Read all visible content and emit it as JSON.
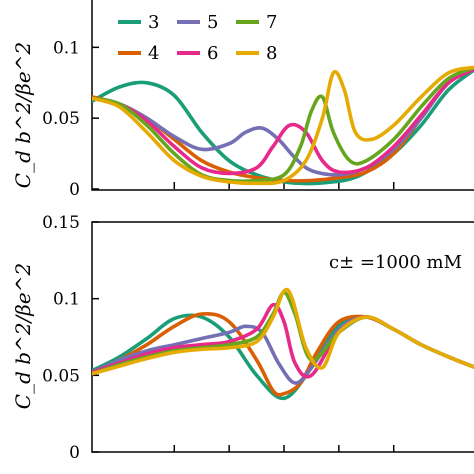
{
  "chart_data": [
    {
      "type": "line",
      "title": "",
      "ylabel": "C_d b^2/βe^2",
      "xlim": [
        -0.35,
        0.35
      ],
      "ylim": [
        0,
        0.12
      ],
      "yticks": [
        0,
        0.05,
        0.1
      ],
      "ytick_labels": [
        "0",
        "0.05",
        "0.1"
      ],
      "legend": {
        "placement": "top-left",
        "columns": 3
      },
      "series": [
        {
          "name": "3",
          "color": "#1a9e77",
          "x": [
            -0.35,
            -0.3,
            -0.25,
            -0.2,
            -0.15,
            -0.1,
            -0.05,
            0,
            0.03,
            0.06,
            0.09,
            0.12,
            0.15,
            0.2,
            0.25,
            0.3,
            0.35
          ],
          "y": [
            0.062,
            0.072,
            0.075,
            0.066,
            0.04,
            0.02,
            0.01,
            0.005,
            0.004,
            0.004,
            0.005,
            0.007,
            0.012,
            0.025,
            0.045,
            0.07,
            0.085
          ]
        },
        {
          "name": "4",
          "color": "#d95f02",
          "x": [
            -0.35,
            -0.3,
            -0.25,
            -0.2,
            -0.15,
            -0.1,
            -0.05,
            0,
            0.05,
            0.1,
            0.15,
            0.2,
            0.25,
            0.3,
            0.35
          ],
          "y": [
            0.065,
            0.06,
            0.05,
            0.035,
            0.02,
            0.012,
            0.008,
            0.006,
            0.006,
            0.008,
            0.012,
            0.025,
            0.05,
            0.075,
            0.085
          ]
        },
        {
          "name": "5",
          "color": "#7570b3",
          "x": [
            -0.35,
            -0.3,
            -0.25,
            -0.2,
            -0.15,
            -0.1,
            -0.07,
            -0.04,
            -0.01,
            0.02,
            0.05,
            0.1,
            0.15,
            0.2,
            0.25,
            0.3,
            0.35
          ],
          "y": [
            0.064,
            0.06,
            0.05,
            0.037,
            0.028,
            0.032,
            0.04,
            0.043,
            0.035,
            0.022,
            0.013,
            0.01,
            0.015,
            0.028,
            0.05,
            0.075,
            0.085
          ]
        },
        {
          "name": "6",
          "color": "#e7298a",
          "x": [
            -0.35,
            -0.3,
            -0.25,
            -0.2,
            -0.15,
            -0.1,
            -0.05,
            -0.02,
            0.01,
            0.04,
            0.07,
            0.1,
            0.15,
            0.2,
            0.25,
            0.3,
            0.35
          ],
          "y": [
            0.064,
            0.06,
            0.048,
            0.03,
            0.015,
            0.011,
            0.015,
            0.03,
            0.045,
            0.04,
            0.02,
            0.012,
            0.015,
            0.03,
            0.052,
            0.075,
            0.085
          ]
        },
        {
          "name": "7",
          "color": "#66a61e",
          "x": [
            -0.35,
            -0.3,
            -0.25,
            -0.2,
            -0.15,
            -0.1,
            -0.05,
            0,
            0.03,
            0.05,
            0.07,
            0.09,
            0.12,
            0.15,
            0.2,
            0.25,
            0.3,
            0.35
          ],
          "y": [
            0.064,
            0.06,
            0.045,
            0.025,
            0.01,
            0.006,
            0.006,
            0.01,
            0.03,
            0.055,
            0.065,
            0.04,
            0.02,
            0.02,
            0.035,
            0.058,
            0.078,
            0.086
          ]
        },
        {
          "name": "8",
          "color": "#e6ab02",
          "x": [
            -0.35,
            -0.3,
            -0.25,
            -0.2,
            -0.15,
            -0.1,
            -0.05,
            0,
            0.04,
            0.07,
            0.09,
            0.11,
            0.13,
            0.16,
            0.2,
            0.25,
            0.3,
            0.35
          ],
          "y": [
            0.064,
            0.058,
            0.04,
            0.02,
            0.009,
            0.005,
            0.004,
            0.006,
            0.02,
            0.05,
            0.082,
            0.07,
            0.04,
            0.035,
            0.045,
            0.065,
            0.082,
            0.086
          ]
        }
      ]
    },
    {
      "type": "line",
      "title": "",
      "ylabel": "C_d b^2/βe^2",
      "annotation": "c± =1000 mM",
      "xlim": [
        -0.35,
        0.35
      ],
      "ylim": [
        0,
        0.15
      ],
      "yticks": [
        0,
        0.05,
        0.1,
        0.15
      ],
      "ytick_labels": [
        "0",
        "0.05",
        "0.1",
        "0.15"
      ],
      "series": [
        {
          "name": "3",
          "color": "#1a9e77",
          "x": [
            -0.35,
            -0.3,
            -0.25,
            -0.2,
            -0.15,
            -0.1,
            -0.05,
            0,
            0.05,
            0.1,
            0.15,
            0.2,
            0.25,
            0.3,
            0.35
          ],
          "y": [
            0.053,
            0.062,
            0.074,
            0.087,
            0.088,
            0.075,
            0.05,
            0.035,
            0.055,
            0.083,
            0.088,
            0.08,
            0.07,
            0.062,
            0.055
          ]
        },
        {
          "name": "4",
          "color": "#d95f02",
          "x": [
            -0.35,
            -0.3,
            -0.25,
            -0.2,
            -0.15,
            -0.1,
            -0.05,
            -0.02,
            0,
            0.03,
            0.06,
            0.1,
            0.15,
            0.2,
            0.25,
            0.3,
            0.35
          ],
          "y": [
            0.052,
            0.06,
            0.07,
            0.082,
            0.09,
            0.085,
            0.06,
            0.04,
            0.038,
            0.045,
            0.065,
            0.085,
            0.088,
            0.08,
            0.07,
            0.062,
            0.055
          ]
        },
        {
          "name": "5",
          "color": "#7570b3",
          "x": [
            -0.35,
            -0.3,
            -0.25,
            -0.2,
            -0.15,
            -0.1,
            -0.07,
            -0.04,
            -0.01,
            0.02,
            0.05,
            0.1,
            0.15,
            0.2,
            0.25,
            0.3,
            0.35
          ],
          "y": [
            0.052,
            0.06,
            0.066,
            0.07,
            0.074,
            0.078,
            0.082,
            0.078,
            0.058,
            0.045,
            0.055,
            0.08,
            0.088,
            0.08,
            0.07,
            0.062,
            0.055
          ]
        },
        {
          "name": "6",
          "color": "#e7298a",
          "x": [
            -0.35,
            -0.3,
            -0.25,
            -0.2,
            -0.15,
            -0.1,
            -0.05,
            -0.02,
            0,
            0.02,
            0.05,
            0.1,
            0.15,
            0.2,
            0.25,
            0.3,
            0.35
          ],
          "y": [
            0.052,
            0.058,
            0.064,
            0.068,
            0.07,
            0.072,
            0.08,
            0.096,
            0.085,
            0.058,
            0.05,
            0.078,
            0.088,
            0.08,
            0.07,
            0.062,
            0.055
          ]
        },
        {
          "name": "7",
          "color": "#66a61e",
          "x": [
            -0.35,
            -0.3,
            -0.25,
            -0.2,
            -0.15,
            -0.1,
            -0.05,
            -0.02,
            0,
            0.02,
            0.05,
            0.1,
            0.15,
            0.2,
            0.25,
            0.3,
            0.35
          ],
          "y": [
            0.051,
            0.057,
            0.062,
            0.066,
            0.068,
            0.07,
            0.075,
            0.09,
            0.104,
            0.09,
            0.06,
            0.078,
            0.088,
            0.08,
            0.07,
            0.062,
            0.055
          ]
        },
        {
          "name": "8",
          "color": "#e6ab02",
          "x": [
            -0.35,
            -0.3,
            -0.25,
            -0.2,
            -0.15,
            -0.1,
            -0.05,
            -0.02,
            0,
            0.015,
            0.04,
            0.07,
            0.1,
            0.15,
            0.2,
            0.25,
            0.3,
            0.35
          ],
          "y": [
            0.051,
            0.056,
            0.061,
            0.065,
            0.067,
            0.068,
            0.072,
            0.088,
            0.105,
            0.1,
            0.068,
            0.055,
            0.078,
            0.088,
            0.08,
            0.07,
            0.062,
            0.055
          ]
        }
      ]
    }
  ]
}
